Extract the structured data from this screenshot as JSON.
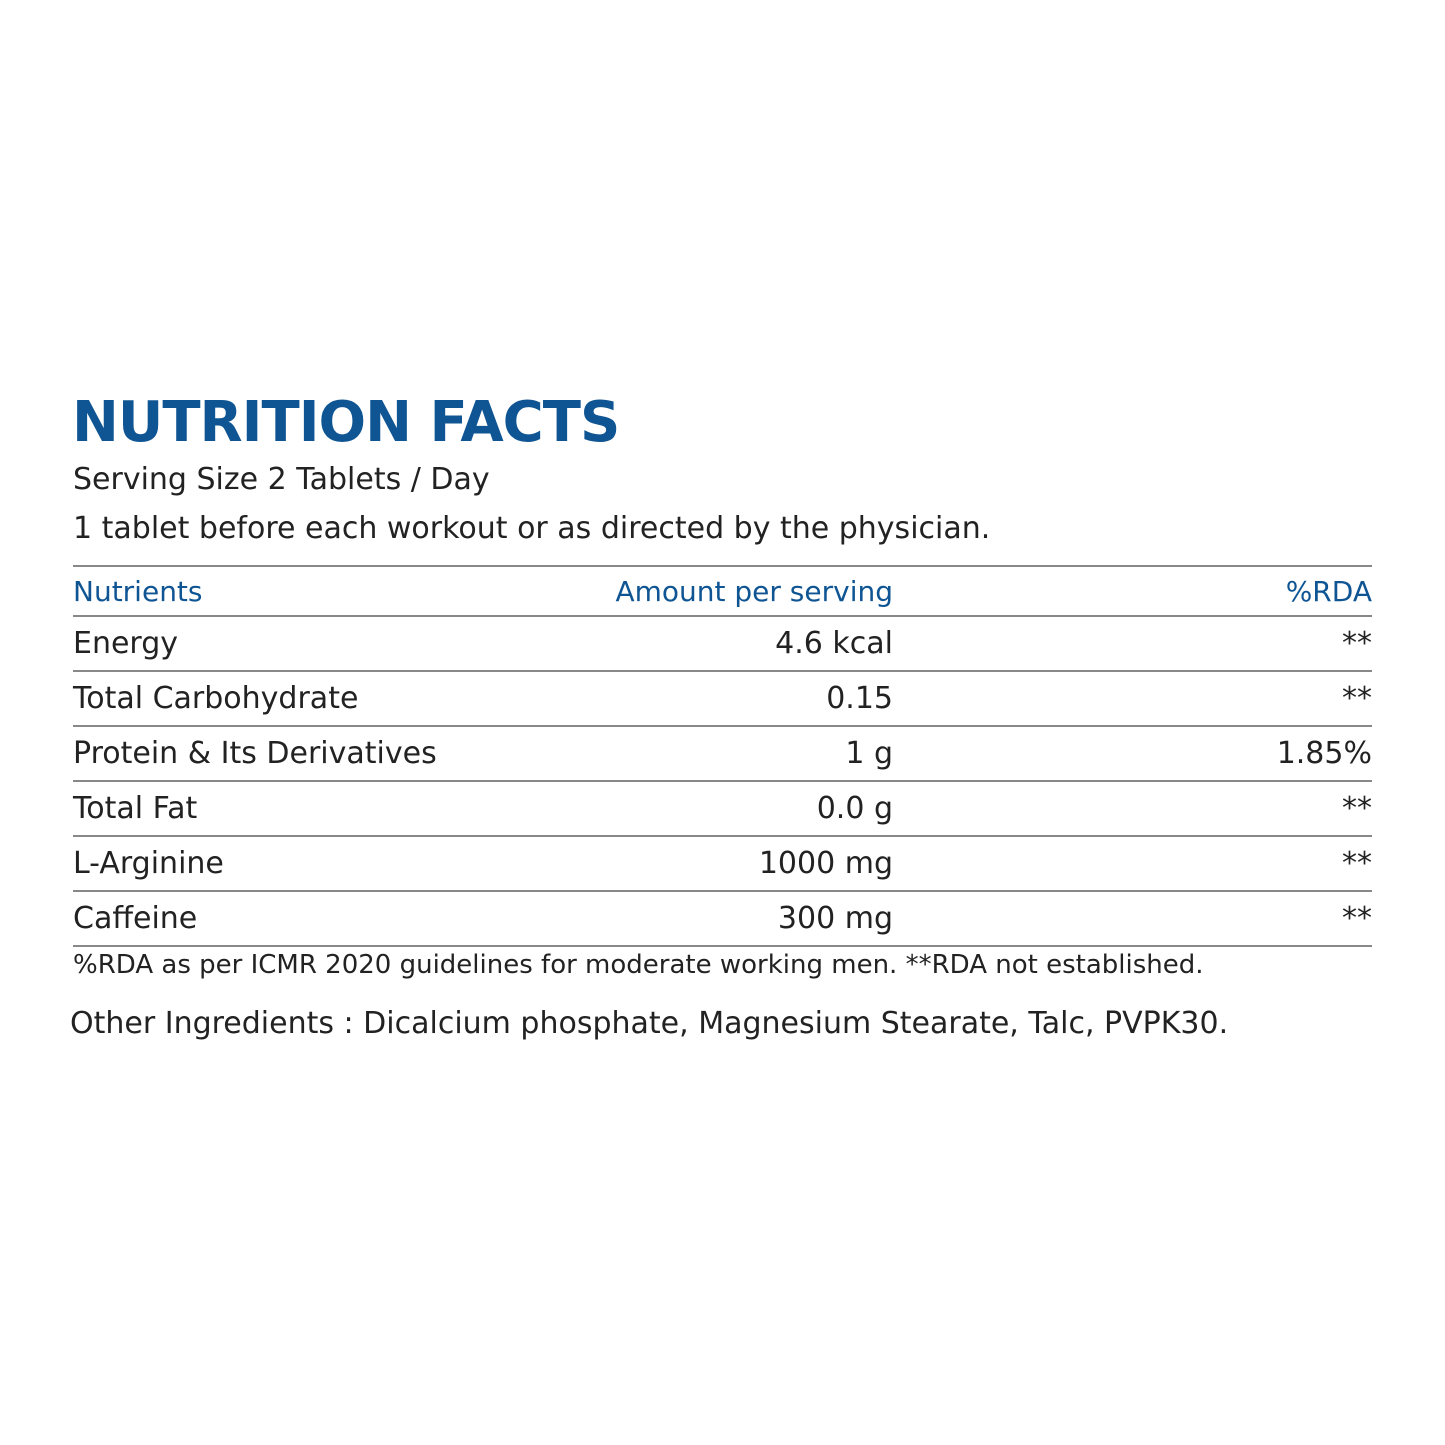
{
  "header": {
    "title": "NUTRITION FACTS",
    "serving": "Serving Size 2 Tablets / Day",
    "directions": "1 tablet before each workout or as directed by the physician."
  },
  "table": {
    "columns": [
      "Nutrients",
      "Amount per serving",
      "%RDA"
    ],
    "rows": [
      [
        "Energy",
        "4.6 kcal",
        "**"
      ],
      [
        "Total Carbohydrate",
        "0.15",
        "**"
      ],
      [
        "Protein & Its Derivatives",
        "1 g",
        "1.85%"
      ],
      [
        "Total Fat",
        "0.0 g",
        "**"
      ],
      [
        "L-Arginine",
        "1000 mg",
        "**"
      ],
      [
        "Caffeine",
        "300 mg",
        "**"
      ]
    ]
  },
  "footnote": "%RDA as per ICMR 2020 guidelines for moderate working men. **RDA not established.",
  "other_ingredients": "Other Ingredients : Dicalcium phosphate, Magnesium Stearate, Talc, PVPK30."
}
